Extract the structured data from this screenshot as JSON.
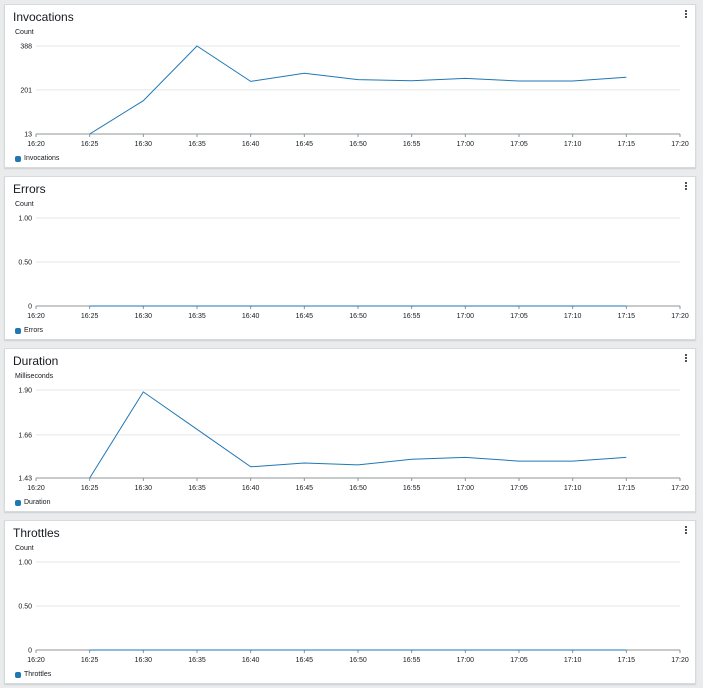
{
  "series_color": "#1f77b4",
  "panels": [
    {
      "title": "Invocations",
      "unit_label": "Count",
      "legend": "Invocations",
      "menu_icon": "kebab-menu-icon"
    },
    {
      "title": "Errors",
      "unit_label": "Count",
      "legend": "Errors",
      "menu_icon": "kebab-menu-icon"
    },
    {
      "title": "Duration",
      "unit_label": "Milliseconds",
      "legend": "Duration",
      "menu_icon": "kebab-menu-icon"
    },
    {
      "title": "Throttles",
      "unit_label": "Count",
      "legend": "Throttles",
      "menu_icon": "kebab-menu-icon"
    }
  ],
  "chart_data": [
    {
      "type": "line",
      "title": "Invocations",
      "ylabel": "Count",
      "x_ticks": [
        "16:20",
        "16:25",
        "16:30",
        "16:35",
        "16:40",
        "16:45",
        "16:50",
        "16:55",
        "17:00",
        "17:05",
        "17:10",
        "17:15",
        "17:20"
      ],
      "y_ticks": [
        "13",
        "201",
        "388"
      ],
      "y_tick_values": [
        13,
        201,
        388
      ],
      "ylim": [
        13,
        388
      ],
      "grid": true,
      "legend_position": "bottom-left",
      "series": [
        {
          "name": "Invocations",
          "x": [
            "16:25",
            "16:30",
            "16:35",
            "16:40",
            "16:45",
            "16:50",
            "16:55",
            "17:00",
            "17:05",
            "17:10",
            "17:15"
          ],
          "values": [
            13,
            155,
            388,
            237,
            272,
            245,
            240,
            250,
            239,
            239,
            255
          ]
        }
      ]
    },
    {
      "type": "line",
      "title": "Errors",
      "ylabel": "Count",
      "x_ticks": [
        "16:20",
        "16:25",
        "16:30",
        "16:35",
        "16:40",
        "16:45",
        "16:50",
        "16:55",
        "17:00",
        "17:05",
        "17:10",
        "17:15",
        "17:20"
      ],
      "y_ticks": [
        "0",
        "0.50",
        "1.00"
      ],
      "y_tick_values": [
        0,
        0.5,
        1.0
      ],
      "ylim": [
        0,
        1
      ],
      "grid": true,
      "legend_position": "bottom-left",
      "series": [
        {
          "name": "Errors",
          "x": [
            "16:25",
            "16:30",
            "16:35",
            "16:40",
            "16:45",
            "16:50",
            "16:55",
            "17:00",
            "17:05",
            "17:10",
            "17:15"
          ],
          "values": [
            0,
            0,
            0,
            0,
            0,
            0,
            0,
            0,
            0,
            0,
            0
          ]
        }
      ]
    },
    {
      "type": "line",
      "title": "Duration",
      "ylabel": "Milliseconds",
      "x_ticks": [
        "16:20",
        "16:25",
        "16:30",
        "16:35",
        "16:40",
        "16:45",
        "16:50",
        "16:55",
        "17:00",
        "17:05",
        "17:10",
        "17:15",
        "17:20"
      ],
      "y_ticks": [
        "1.43",
        "1.66",
        "1.90"
      ],
      "y_tick_values": [
        1.43,
        1.66,
        1.9
      ],
      "ylim": [
        1.43,
        1.9
      ],
      "grid": true,
      "legend_position": "bottom-left",
      "series": [
        {
          "name": "Duration",
          "x": [
            "16:25",
            "16:30",
            "16:35",
            "16:40",
            "16:45",
            "16:50",
            "16:55",
            "17:00",
            "17:05",
            "17:10",
            "17:15"
          ],
          "values": [
            1.43,
            1.89,
            1.69,
            1.49,
            1.51,
            1.5,
            1.53,
            1.54,
            1.52,
            1.52,
            1.54
          ]
        }
      ]
    },
    {
      "type": "line",
      "title": "Throttles",
      "ylabel": "Count",
      "x_ticks": [
        "16:20",
        "16:25",
        "16:30",
        "16:35",
        "16:40",
        "16:45",
        "16:50",
        "16:55",
        "17:00",
        "17:05",
        "17:10",
        "17:15",
        "17:20"
      ],
      "y_ticks": [
        "0",
        "0.50",
        "1.00"
      ],
      "y_tick_values": [
        0,
        0.5,
        1.0
      ],
      "ylim": [
        0,
        1
      ],
      "grid": true,
      "legend_position": "bottom-left",
      "series": [
        {
          "name": "Throttles",
          "x": [
            "16:25",
            "16:30",
            "16:35",
            "16:40",
            "16:45",
            "16:50",
            "16:55",
            "17:00",
            "17:05",
            "17:10",
            "17:15"
          ],
          "values": [
            0,
            0,
            0,
            0,
            0,
            0,
            0,
            0,
            0,
            0,
            0
          ]
        }
      ]
    }
  ]
}
